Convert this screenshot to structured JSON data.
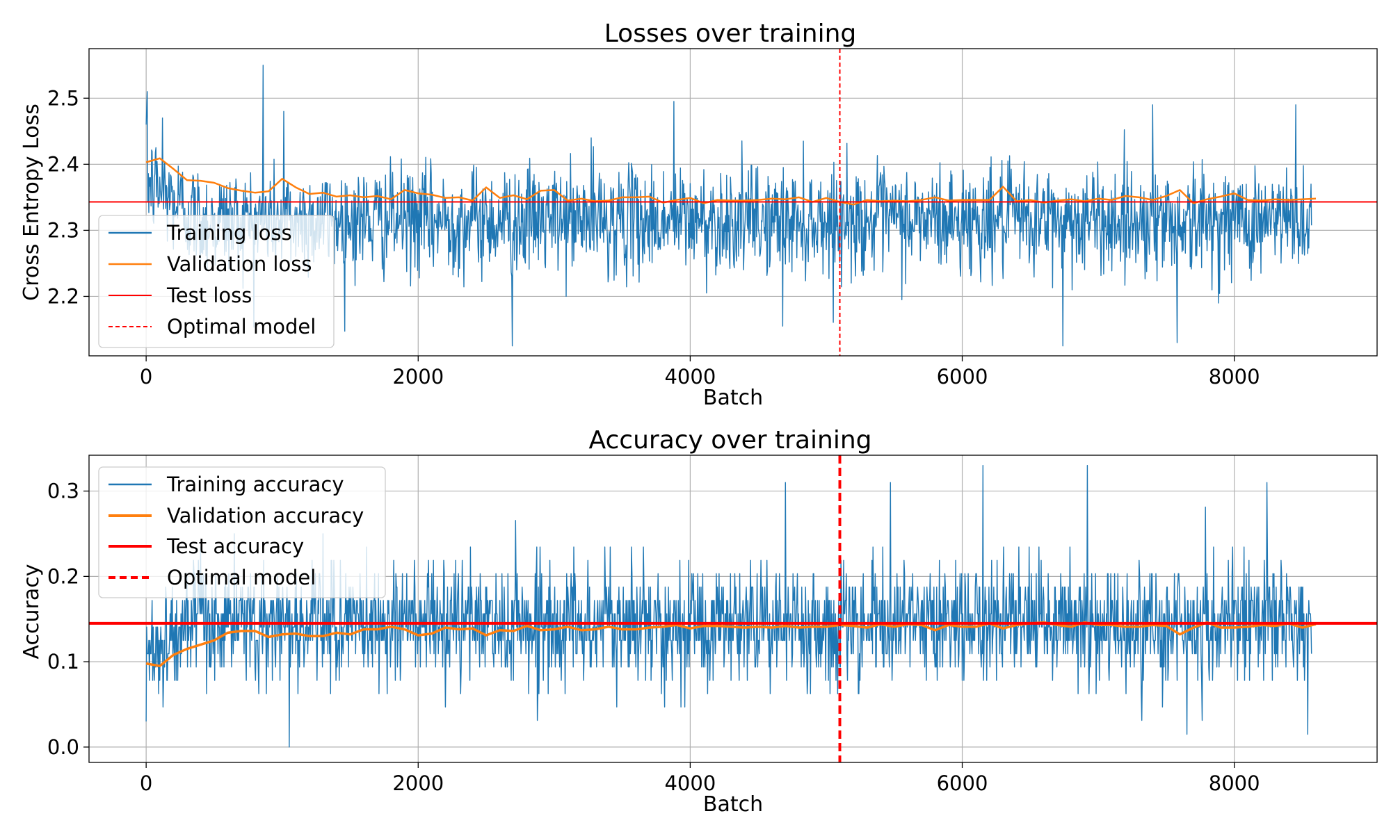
{
  "chart_data": [
    {
      "type": "line",
      "title": "Losses over training",
      "xlabel": "Batch",
      "ylabel": "Cross Entropy Loss",
      "xlim": [
        -420,
        9050
      ],
      "ylim": [
        2.11,
        2.575
      ],
      "xticks": [
        0,
        2000,
        4000,
        6000,
        8000
      ],
      "xtick_labels": [
        "0",
        "2000",
        "4000",
        "6000",
        "8000"
      ],
      "yticks": [
        2.2,
        2.3,
        2.4,
        2.5
      ],
      "ytick_labels": [
        "2.2",
        "2.3",
        "2.4",
        "2.5"
      ],
      "grid": true,
      "legend_position": "lower-left",
      "colors": {
        "train": "#1f77b4",
        "val": "#ff7f0e",
        "test": "#ff0000",
        "optimal": "#ff0000"
      },
      "series": [
        {
          "name": "Training loss",
          "kind": "noisy-line",
          "x_range": [
            0,
            8570
          ],
          "summary": {
            "typical_center": 2.315,
            "typical_band": [
              2.24,
              2.4
            ],
            "min": 2.125,
            "max": 2.55
          },
          "anchors": [
            [
              0,
              2.46
            ],
            [
              8,
              2.51
            ],
            [
              60,
              2.38
            ],
            [
              120,
              2.47
            ],
            [
              860,
              2.55
            ],
            [
              1010,
              2.48
            ],
            [
              2690,
              2.125
            ],
            [
              3270,
              2.44
            ],
            [
              3880,
              2.495
            ],
            [
              4680,
              2.155
            ],
            [
              6740,
              2.125
            ],
            [
              7580,
              2.13
            ],
            [
              7400,
              2.49
            ],
            [
              8450,
              2.49
            ]
          ]
        },
        {
          "name": "Validation loss",
          "x": [
            0,
            100,
            200,
            300,
            400,
            500,
            600,
            700,
            800,
            900,
            1000,
            1100,
            1200,
            1300,
            1400,
            1500,
            1600,
            1700,
            1800,
            1900,
            2000,
            2100,
            2200,
            2300,
            2400,
            2500,
            2600,
            2700,
            2800,
            2900,
            3000,
            3100,
            3200,
            3300,
            3400,
            3500,
            3600,
            3700,
            3800,
            3900,
            4000,
            4100,
            4200,
            4300,
            4400,
            4500,
            4600,
            4700,
            4800,
            4900,
            5000,
            5100,
            5200,
            5300,
            5400,
            5500,
            5600,
            5700,
            5800,
            5900,
            6000,
            6100,
            6200,
            6300,
            6400,
            6500,
            6600,
            6700,
            6800,
            6900,
            7000,
            7100,
            7200,
            7300,
            7400,
            7500,
            7600,
            7700,
            7800,
            7900,
            8000,
            8100,
            8200,
            8300,
            8400,
            8500,
            8600
          ],
          "values": [
            2.403,
            2.409,
            2.393,
            2.376,
            2.375,
            2.372,
            2.364,
            2.36,
            2.357,
            2.359,
            2.378,
            2.365,
            2.355,
            2.357,
            2.351,
            2.353,
            2.35,
            2.352,
            2.347,
            2.361,
            2.356,
            2.354,
            2.349,
            2.35,
            2.345,
            2.365,
            2.349,
            2.353,
            2.347,
            2.36,
            2.361,
            2.345,
            2.348,
            2.344,
            2.345,
            2.35,
            2.35,
            2.351,
            2.342,
            2.346,
            2.349,
            2.341,
            2.346,
            2.345,
            2.345,
            2.346,
            2.348,
            2.347,
            2.35,
            2.343,
            2.349,
            2.343,
            2.339,
            2.346,
            2.344,
            2.345,
            2.344,
            2.346,
            2.35,
            2.345,
            2.346,
            2.346,
            2.346,
            2.366,
            2.344,
            2.346,
            2.342,
            2.345,
            2.347,
            2.344,
            2.348,
            2.346,
            2.352,
            2.35,
            2.346,
            2.352,
            2.361,
            2.341,
            2.347,
            2.351,
            2.356,
            2.346,
            2.345,
            2.347,
            2.346,
            2.347,
            2.348
          ]
        },
        {
          "name": "Test loss",
          "kind": "hline",
          "y": 2.343
        },
        {
          "name": "Optimal model",
          "kind": "vline-dashed",
          "x": 5100
        }
      ]
    },
    {
      "type": "line",
      "title": "Accuracy over training",
      "xlabel": "Batch",
      "ylabel": "Accuracy",
      "xlim": [
        -420,
        9050
      ],
      "ylim": [
        -0.018,
        0.342
      ],
      "xticks": [
        0,
        2000,
        4000,
        6000,
        8000
      ],
      "xtick_labels": [
        "0",
        "2000",
        "4000",
        "6000",
        "8000"
      ],
      "yticks": [
        0.0,
        0.1,
        0.2,
        0.3
      ],
      "ytick_labels": [
        "0.0",
        "0.1",
        "0.2",
        "0.3"
      ],
      "grid": true,
      "legend_position": "upper-left",
      "colors": {
        "train": "#1f77b4",
        "val": "#ff7f0e",
        "test": "#ff0000",
        "optimal": "#ff0000"
      },
      "series": [
        {
          "name": "Training accuracy",
          "kind": "noisy-line",
          "x_range": [
            0,
            8570
          ],
          "summary": {
            "typical_center": 0.145,
            "typical_band": [
              0.08,
              0.22
            ],
            "min": 0.0,
            "max": 0.33
          },
          "anchors": [
            [
              0,
              0.03
            ],
            [
              1050,
              0.0
            ],
            [
              4700,
              0.31
            ],
            [
              5470,
              0.31
            ],
            [
              6150,
              0.33
            ],
            [
              6920,
              0.33
            ],
            [
              7650,
              0.015
            ],
            [
              8540,
              0.015
            ],
            [
              8240,
              0.31
            ]
          ]
        },
        {
          "name": "Validation accuracy",
          "x": [
            0,
            100,
            200,
            300,
            400,
            500,
            600,
            700,
            800,
            900,
            1000,
            1100,
            1200,
            1300,
            1400,
            1500,
            1600,
            1700,
            1800,
            1900,
            2000,
            2100,
            2200,
            2300,
            2400,
            2500,
            2600,
            2700,
            2800,
            2900,
            3000,
            3100,
            3200,
            3300,
            3400,
            3500,
            3600,
            3700,
            3800,
            3900,
            4000,
            4100,
            4200,
            4300,
            4400,
            4500,
            4600,
            4700,
            4800,
            4900,
            5000,
            5100,
            5200,
            5300,
            5400,
            5500,
            5600,
            5700,
            5800,
            5900,
            6000,
            6100,
            6200,
            6300,
            6400,
            6500,
            6600,
            6700,
            6800,
            6900,
            7000,
            7100,
            7200,
            7300,
            7400,
            7500,
            7600,
            7700,
            7800,
            7900,
            8000,
            8100,
            8200,
            8300,
            8400,
            8500,
            8600
          ],
          "values": [
            0.098,
            0.095,
            0.108,
            0.115,
            0.12,
            0.125,
            0.134,
            0.136,
            0.136,
            0.129,
            0.132,
            0.133,
            0.13,
            0.13,
            0.134,
            0.132,
            0.138,
            0.138,
            0.141,
            0.138,
            0.131,
            0.133,
            0.14,
            0.138,
            0.139,
            0.131,
            0.137,
            0.136,
            0.142,
            0.137,
            0.138,
            0.141,
            0.137,
            0.138,
            0.141,
            0.138,
            0.138,
            0.14,
            0.141,
            0.143,
            0.139,
            0.142,
            0.142,
            0.141,
            0.14,
            0.141,
            0.14,
            0.142,
            0.14,
            0.141,
            0.141,
            0.143,
            0.142,
            0.14,
            0.144,
            0.141,
            0.144,
            0.143,
            0.137,
            0.143,
            0.141,
            0.141,
            0.145,
            0.139,
            0.143,
            0.145,
            0.146,
            0.143,
            0.141,
            0.146,
            0.143,
            0.143,
            0.141,
            0.141,
            0.143,
            0.142,
            0.132,
            0.14,
            0.146,
            0.14,
            0.14,
            0.141,
            0.143,
            0.142,
            0.145,
            0.14,
            0.144
          ]
        },
        {
          "name": "Test accuracy",
          "kind": "hline",
          "y": 0.145
        },
        {
          "name": "Optimal model",
          "kind": "vline-dashed",
          "x": 5100
        }
      ]
    }
  ]
}
